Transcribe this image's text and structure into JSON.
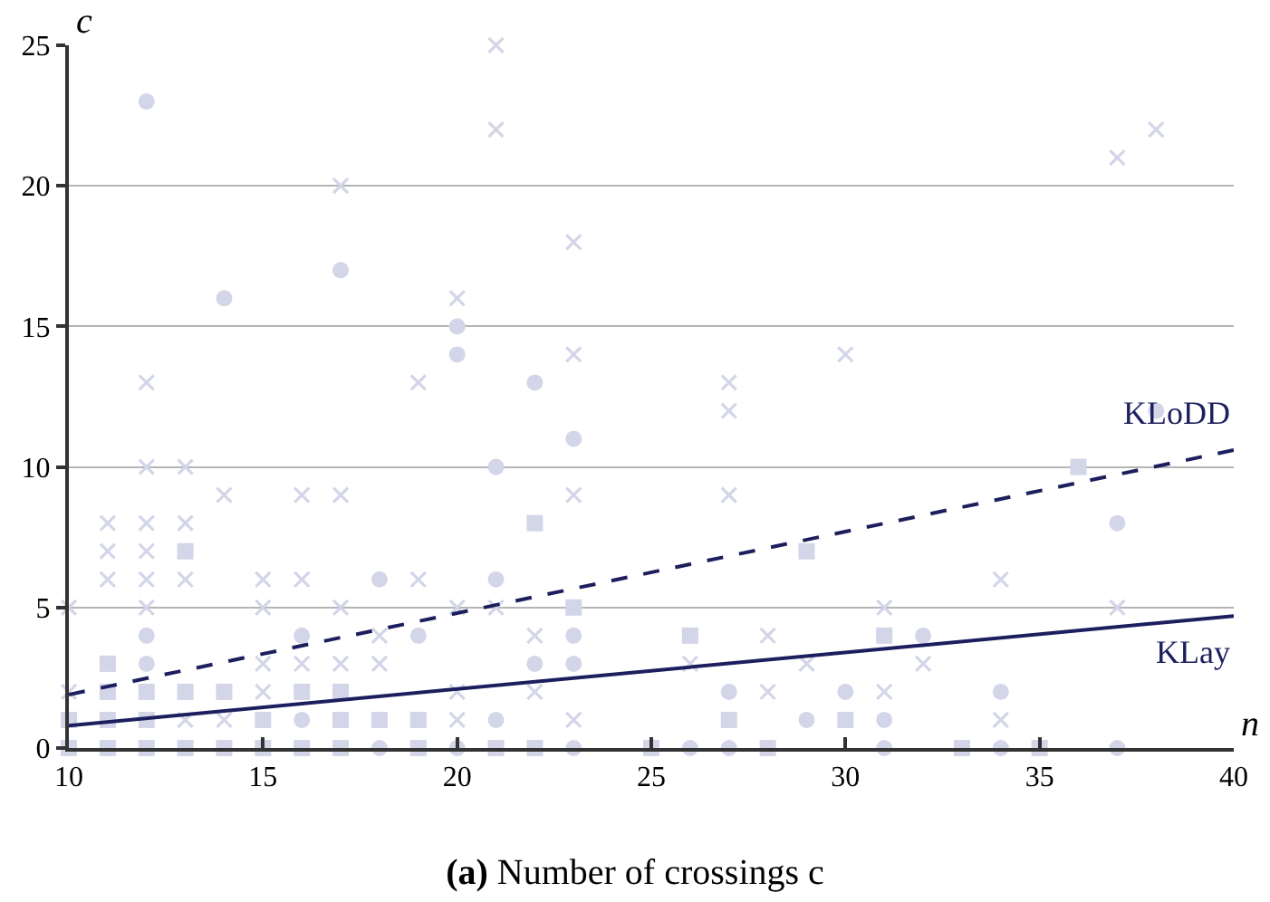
{
  "chart_data": {
    "type": "scatter",
    "title": "(a) Number of crossings c",
    "xlabel": "n",
    "ylabel": "c",
    "xlim": [
      10,
      40
    ],
    "ylim": [
      0,
      25
    ],
    "xticks": [
      10,
      15,
      20,
      25,
      30,
      35,
      40
    ],
    "yticks": [
      0,
      5,
      10,
      15,
      20,
      25
    ],
    "grid": "y",
    "series": [
      {
        "marker": "circle",
        "color": "#d3d5e8",
        "x": [
          12,
          12,
          12,
          14,
          16,
          16,
          17,
          18,
          18,
          19,
          20,
          20,
          20,
          21,
          21,
          21,
          22,
          22,
          23,
          23,
          23,
          23,
          26,
          27,
          27,
          29,
          30,
          31,
          31,
          32,
          34,
          34,
          37,
          37,
          38
        ],
        "values": [
          23,
          4,
          3,
          16,
          4,
          1,
          17,
          6,
          0,
          4,
          15,
          14,
          0,
          10,
          6,
          1,
          13,
          3,
          11,
          4,
          3,
          0,
          0,
          2,
          0,
          1,
          2,
          1,
          0,
          4,
          2,
          0,
          8,
          0,
          12
        ]
      },
      {
        "marker": "square",
        "color": "#d3d5e8",
        "x": [
          10,
          10,
          11,
          11,
          11,
          11,
          12,
          12,
          12,
          13,
          13,
          13,
          14,
          14,
          15,
          15,
          16,
          16,
          17,
          17,
          17,
          18,
          19,
          19,
          21,
          22,
          22,
          23,
          25,
          26,
          27,
          28,
          29,
          30,
          31,
          33,
          35,
          36
        ],
        "values": [
          1,
          0,
          3,
          2,
          1,
          0,
          2,
          1,
          0,
          7,
          2,
          0,
          2,
          0,
          1,
          0,
          2,
          0,
          2,
          1,
          0,
          1,
          1,
          0,
          0,
          8,
          0,
          5,
          0,
          4,
          1,
          0,
          7,
          1,
          4,
          0,
          0,
          10
        ]
      },
      {
        "marker": "cross",
        "color": "#d3d5e8",
        "x": [
          10,
          10,
          11,
          11,
          11,
          12,
          12,
          12,
          12,
          12,
          12,
          13,
          13,
          13,
          13,
          14,
          14,
          15,
          15,
          15,
          15,
          16,
          16,
          16,
          17,
          17,
          17,
          17,
          18,
          18,
          19,
          19,
          20,
          20,
          20,
          20,
          21,
          21,
          21,
          22,
          22,
          23,
          23,
          23,
          23,
          26,
          27,
          27,
          27,
          28,
          28,
          29,
          30,
          31,
          31,
          32,
          34,
          34,
          37,
          37,
          38
        ],
        "values": [
          5,
          2,
          8,
          7,
          6,
          13,
          10,
          8,
          7,
          6,
          5,
          10,
          8,
          6,
          1,
          9,
          1,
          6,
          5,
          3,
          2,
          9,
          6,
          3,
          20,
          9,
          5,
          3,
          4,
          3,
          13,
          6,
          16,
          5,
          2,
          1,
          25,
          22,
          5,
          4,
          2,
          18,
          14,
          9,
          1,
          3,
          13,
          12,
          9,
          4,
          2,
          3,
          14,
          5,
          2,
          3,
          6,
          1,
          21,
          5,
          22
        ]
      },
      {
        "type": "line",
        "name": "KLoDD",
        "line_style": "dashed",
        "color": "#1c1f5e",
        "x": [
          10,
          40
        ],
        "values": [
          1.9,
          10.6
        ]
      },
      {
        "type": "line",
        "name": "KLay",
        "line_style": "solid",
        "color": "#1c1f5e",
        "x": [
          10,
          40
        ],
        "values": [
          0.8,
          4.7
        ]
      }
    ]
  }
}
